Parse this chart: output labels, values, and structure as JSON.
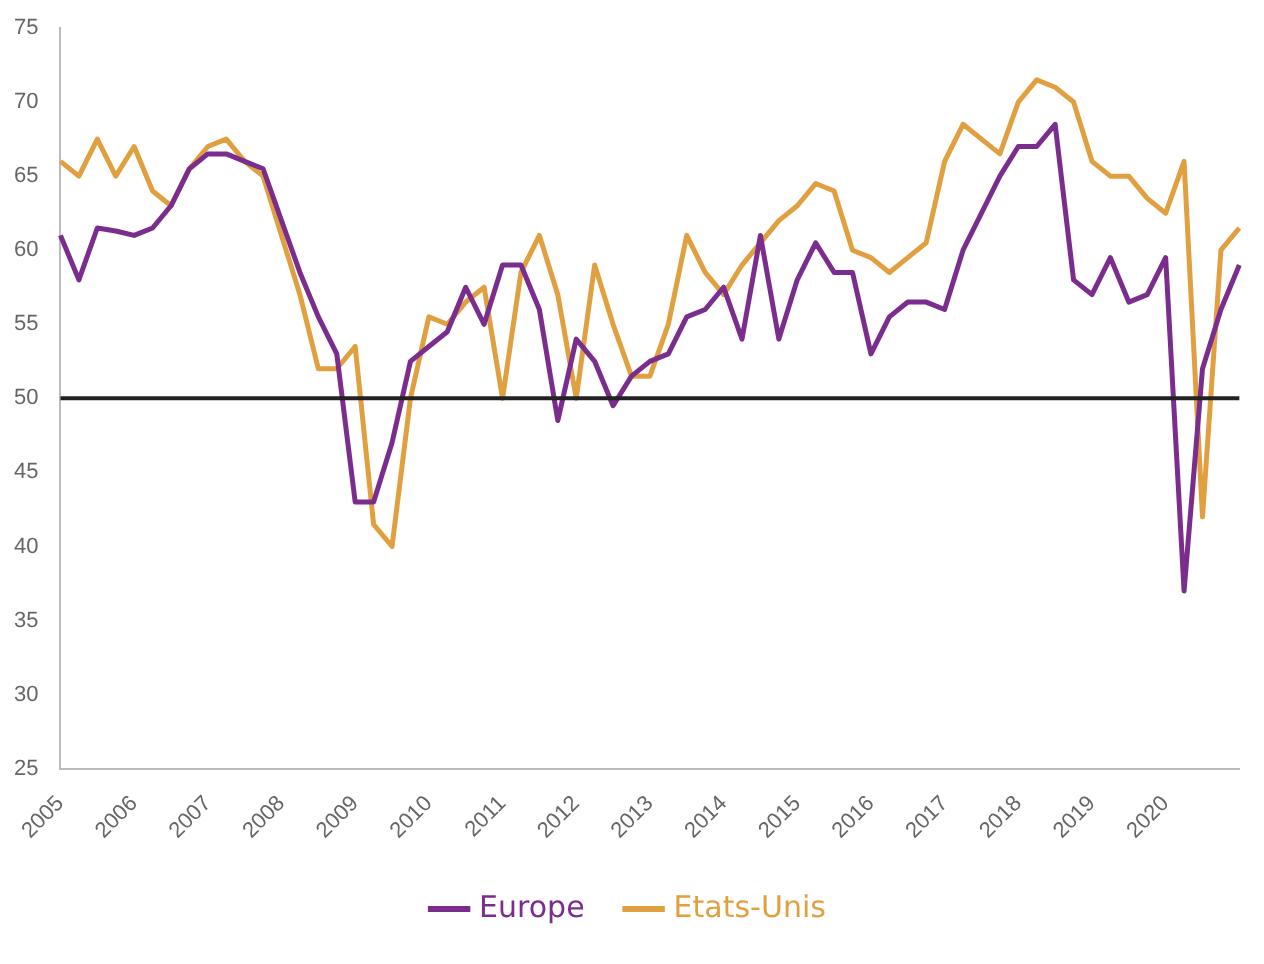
{
  "chart_data": {
    "type": "line",
    "categories": [
      "2005",
      null,
      null,
      null,
      "2006",
      null,
      null,
      null,
      "2007",
      null,
      null,
      null,
      "2008",
      null,
      null,
      null,
      "2009",
      null,
      null,
      null,
      "2010",
      null,
      null,
      null,
      "2011",
      null,
      null,
      null,
      "2012",
      null,
      null,
      null,
      "2013",
      null,
      null,
      null,
      "2014",
      null,
      null,
      null,
      "2015",
      null,
      null,
      null,
      "2016",
      null,
      null,
      null,
      "2017",
      null,
      null,
      null,
      "2018",
      null,
      null,
      null,
      "2019",
      null,
      null,
      null,
      "2020",
      null,
      null,
      null,
      null
    ],
    "series": [
      {
        "name": "Europe",
        "color": "#7b2d8e",
        "values": [
          61,
          58,
          61.5,
          61.3,
          61,
          61.5,
          63,
          65.5,
          66.5,
          66.5,
          66,
          65.5,
          62,
          58.5,
          55.5,
          53,
          43,
          43,
          47,
          52.5,
          53.5,
          54.5,
          57.5,
          55,
          59,
          59,
          56,
          48.5,
          54,
          52.5,
          49.5,
          51.5,
          52.5,
          53,
          55.5,
          56,
          57.5,
          54,
          61,
          54,
          58,
          60.5,
          58.5,
          58.5,
          53,
          55.5,
          56.5,
          56.5,
          56,
          60,
          62.5,
          65,
          67,
          67,
          68.5,
          58,
          57,
          59.5,
          56.5,
          57,
          59.5,
          37,
          52,
          56,
          59
        ]
      },
      {
        "name": "Etats-Unis",
        "color": "#e0a040",
        "values": [
          66,
          65,
          67.5,
          65,
          67,
          64,
          63,
          65.5,
          67,
          67.5,
          66,
          65,
          61,
          57,
          52,
          52,
          53.5,
          41.5,
          40,
          50,
          55.5,
          55,
          56.5,
          57.5,
          50,
          58.5,
          61,
          57,
          50,
          59,
          55,
          51.5,
          51.5,
          55,
          61,
          58.5,
          57,
          59,
          60.5,
          62,
          63,
          64.5,
          64,
          60,
          59.5,
          58.5,
          59.5,
          60.5,
          66,
          68.5,
          67.5,
          66.5,
          70,
          71.5,
          71,
          70,
          66,
          65,
          65,
          63.5,
          62.5,
          66,
          42,
          60,
          61.5
        ]
      }
    ],
    "ylim": [
      25,
      75
    ],
    "yticks": [
      25,
      30,
      35,
      40,
      45,
      50,
      55,
      60,
      65,
      70,
      75
    ],
    "ref_lines": [
      {
        "axis": "y",
        "value": 50,
        "color": "#222222"
      }
    ],
    "grid": false,
    "legend": "bottom",
    "marker": "none",
    "line_style": "solid"
  }
}
